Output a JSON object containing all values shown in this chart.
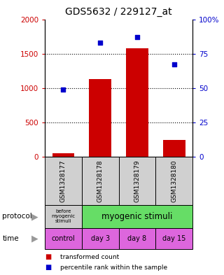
{
  "title": "GDS5632 / 229127_at",
  "samples": [
    "GSM1328177",
    "GSM1328178",
    "GSM1328179",
    "GSM1328180"
  ],
  "bar_values": [
    50,
    1130,
    1580,
    240
  ],
  "bar_color": "#cc0000",
  "dot_values": [
    49,
    83,
    87,
    67
  ],
  "dot_color": "#0000cc",
  "ylim_left": [
    0,
    2000
  ],
  "ylim_right": [
    0,
    100
  ],
  "yticks_left": [
    0,
    500,
    1000,
    1500,
    2000
  ],
  "ytick_labels_left": [
    "0",
    "500",
    "1000",
    "1500",
    "2000"
  ],
  "yticks_right": [
    0,
    25,
    50,
    75,
    100
  ],
  "ytick_labels_right": [
    "0",
    "25",
    "50",
    "75",
    "100%"
  ],
  "gridlines": [
    500,
    1000,
    1500
  ],
  "protocol_labels": [
    "before\nmyogenic\nstimuli",
    "myogenic stimuli"
  ],
  "protocol_colors": [
    "#cccccc",
    "#66dd66"
  ],
  "time_labels": [
    "control",
    "day 3",
    "day 8",
    "day 15"
  ],
  "time_color": "#dd66dd",
  "sample_bg_color": "#d0d0d0",
  "legend_bar_label": "transformed count",
  "legend_dot_label": "percentile rank within the sample",
  "left_label_color": "#cc0000",
  "right_label_color": "#0000cc",
  "fig_width": 3.2,
  "fig_height": 3.93,
  "dpi": 100
}
